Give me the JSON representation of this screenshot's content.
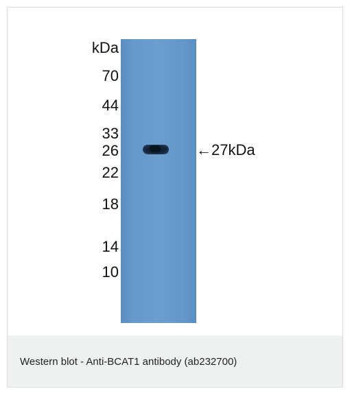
{
  "figure": {
    "unit_label": "kDa",
    "markers": [
      "70",
      "44",
      "33",
      "26",
      "22",
      "18",
      "14",
      "10"
    ],
    "band_label": "←27kDa",
    "lane_color": "#6699cc",
    "band_color": "#0e1a2a"
  },
  "caption": {
    "text": "Western blot - Anti-BCAT1 antibody (ab232700)",
    "background": "#eef1f2"
  }
}
